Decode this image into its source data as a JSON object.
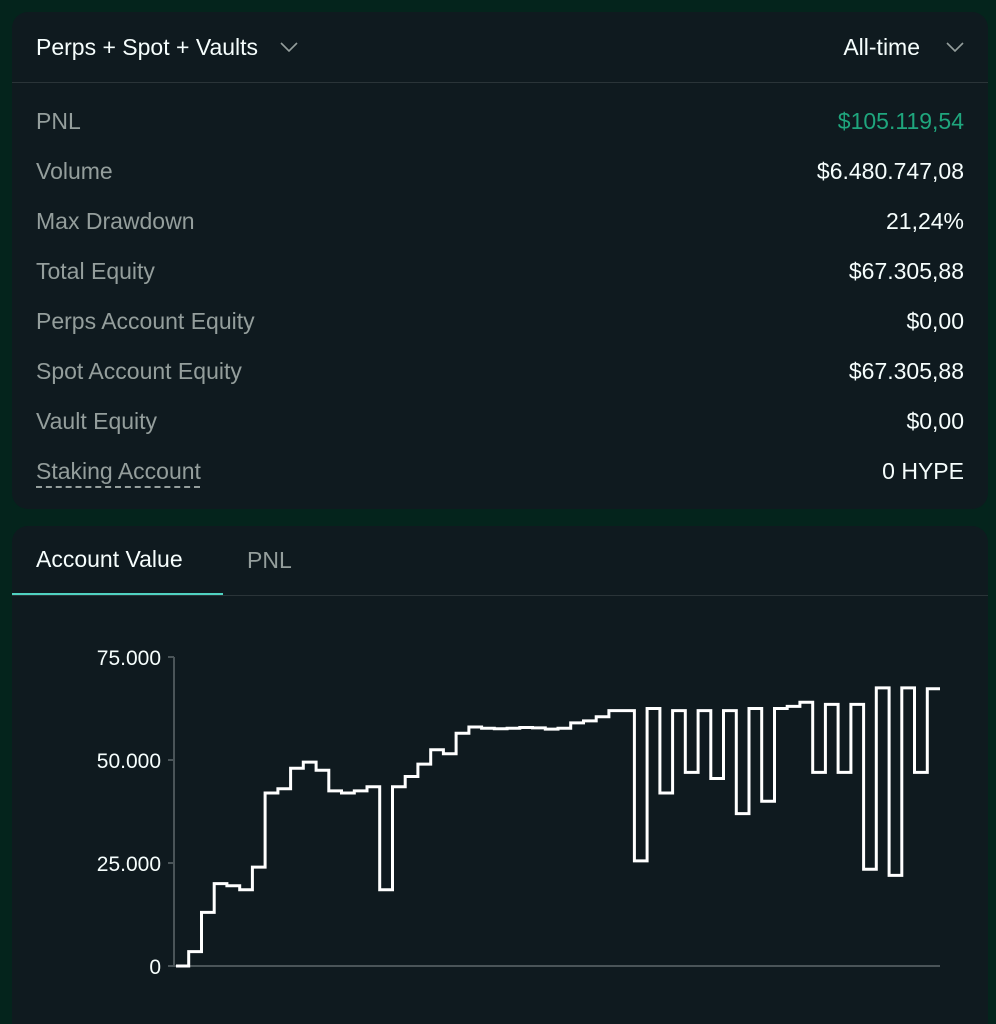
{
  "filter": {
    "label": "Perps + Spot + Vaults",
    "icon": "chevron-down-icon"
  },
  "range": {
    "label": "All-time",
    "icon": "chevron-down-icon"
  },
  "stats": [
    {
      "label": "PNL",
      "value": "$105.119,54",
      "color": "#1fa67d"
    },
    {
      "label": "Volume",
      "value": "$6.480.747,08"
    },
    {
      "label": "Max Drawdown",
      "value": "21,24%"
    },
    {
      "label": "Total Equity",
      "value": "$67.305,88"
    },
    {
      "label": "Perps Account Equity",
      "value": "$0,00"
    },
    {
      "label": "Spot Account Equity",
      "value": "$67.305,88"
    },
    {
      "label": "Vault Equity",
      "value": "$0,00"
    },
    {
      "label": "Staking Account",
      "value": "0 HYPE"
    }
  ],
  "tabs": [
    {
      "label": "Account Value",
      "active": true
    },
    {
      "label": "PNL",
      "active": false
    }
  ],
  "colors": {
    "accent": "#50d2c1",
    "positive": "#1fa67d",
    "background": "#04241c",
    "card": "#0f1a1f"
  },
  "chart_data": {
    "type": "line",
    "step": true,
    "ylim": [
      0,
      75000
    ],
    "yticks": [
      0,
      25000,
      50000,
      75000
    ],
    "ytick_labels": [
      "0",
      "25.000",
      "50.000",
      "75.000"
    ],
    "xlabel": "",
    "ylabel": "",
    "series": [
      {
        "values": [
          0,
          3500,
          13000,
          20000,
          19500,
          18500,
          24000,
          42000,
          43000,
          48000,
          49500,
          47500,
          42500,
          42000,
          42500,
          43500,
          18500,
          43500,
          46000,
          49000,
          52500,
          51500,
          56500,
          58000,
          57700,
          57600,
          57700,
          57900,
          57800,
          57500,
          57700,
          59000,
          59500,
          60500,
          62000,
          62000,
          25500,
          62500,
          42000,
          62000,
          47000,
          62000,
          45500,
          62000,
          37000,
          62500,
          40000,
          62500,
          63000,
          64000,
          47000,
          63500,
          47000,
          63500,
          23500,
          67500,
          22000,
          67500,
          47000,
          67300
        ]
      }
    ]
  }
}
